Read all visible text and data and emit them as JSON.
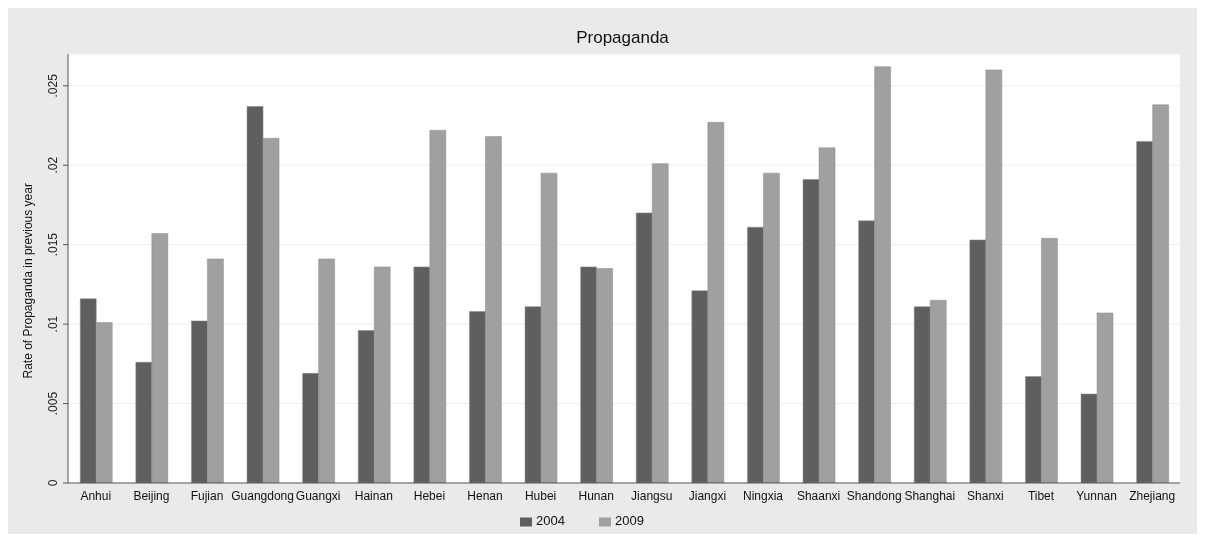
{
  "chart_data": {
    "type": "bar",
    "title": "Propaganda",
    "ylabel": "Rate of Propaganda in previous year",
    "categories": [
      "Anhui",
      "Beijing",
      "Fujian",
      "Guangdong",
      "Guangxi",
      "Hainan",
      "Hebei",
      "Henan",
      "Hubei",
      "Hunan",
      "Jiangsu",
      "Jiangxi",
      "Ningxia",
      "Shaanxi",
      "Shandong",
      "Shanghai",
      "Shanxi",
      "Tibet",
      "Yunnan",
      "Zhejiang"
    ],
    "series": [
      {
        "name": "2004",
        "color": "#5f5f5f",
        "values": [
          0.0116,
          0.0076,
          0.0102,
          0.0237,
          0.0069,
          0.0096,
          0.0136,
          0.0108,
          0.0111,
          0.0136,
          0.017,
          0.0121,
          0.0161,
          0.0191,
          0.0165,
          0.0111,
          0.0153,
          0.0067,
          0.0056,
          0.0215
        ]
      },
      {
        "name": "2009",
        "color": "#a0a0a0",
        "values": [
          0.0101,
          0.0157,
          0.0141,
          0.0217,
          0.0141,
          0.0136,
          0.0222,
          0.0218,
          0.0195,
          0.0135,
          0.0201,
          0.0227,
          0.0195,
          0.0211,
          0.0262,
          0.0115,
          0.026,
          0.0154,
          0.0107,
          0.0238
        ]
      }
    ],
    "ylim": [
      0,
      0.027
    ],
    "yticks": [
      {
        "value": 0,
        "label": "0"
      },
      {
        "value": 0.005,
        "label": ".005"
      },
      {
        "value": 0.01,
        "label": ".01"
      },
      {
        "value": 0.015,
        "label": ".015"
      },
      {
        "value": 0.02,
        "label": ".02"
      },
      {
        "value": 0.025,
        "label": ".025"
      }
    ],
    "grid": "y",
    "legend": "bottom"
  }
}
